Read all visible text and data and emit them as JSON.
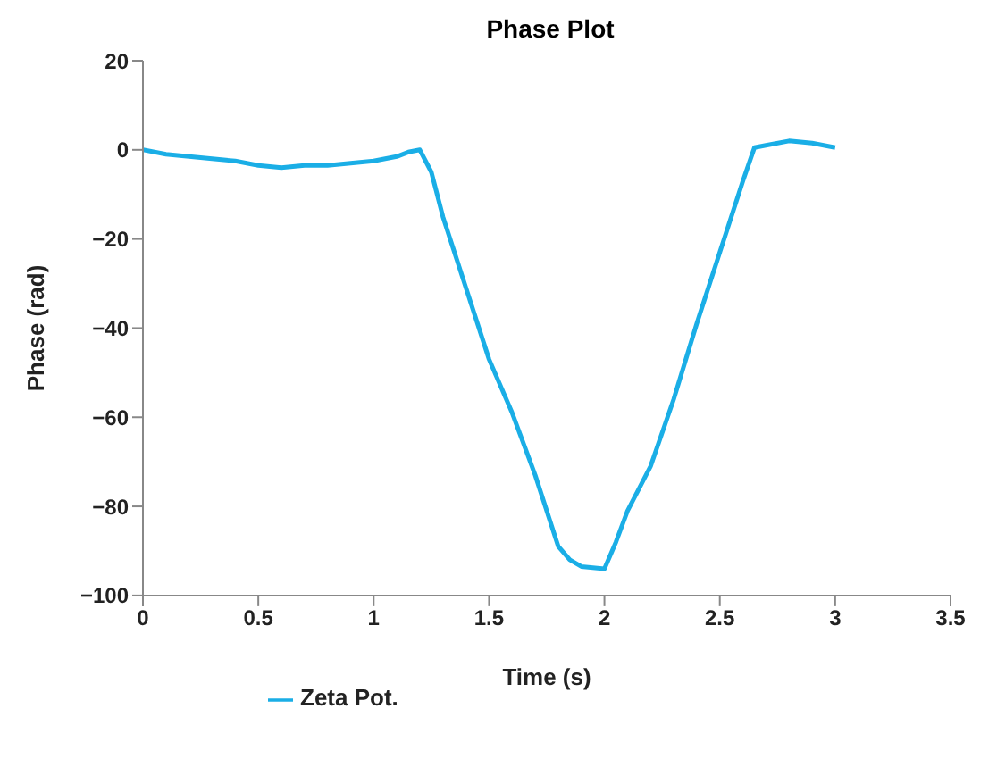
{
  "chart_data": {
    "type": "line",
    "title": "Phase Plot",
    "xlabel": "Time (s)",
    "ylabel": "Phase (rad)",
    "x": [
      0,
      0.1,
      0.2,
      0.3,
      0.4,
      0.5,
      0.6,
      0.7,
      0.8,
      0.9,
      1.0,
      1.1,
      1.15,
      1.2,
      1.25,
      1.3,
      1.4,
      1.5,
      1.6,
      1.7,
      1.8,
      1.85,
      1.9,
      2.0,
      2.05,
      2.1,
      2.2,
      2.3,
      2.4,
      2.5,
      2.6,
      2.65,
      2.7,
      2.8,
      2.9,
      3.0
    ],
    "series": [
      {
        "name": "Zeta Pot.",
        "color": "#1aaee6",
        "values": [
          0,
          -1,
          -1.5,
          -2,
          -2.5,
          -3.5,
          -4,
          -3.5,
          -3.5,
          -3,
          -2.5,
          -1.5,
          -0.5,
          0,
          -5,
          -15,
          -31,
          -47,
          -59,
          -73,
          -89,
          -92,
          -93.5,
          -94,
          -88,
          -81,
          -71,
          -56,
          -39,
          -23,
          -7,
          0.5,
          1,
          2,
          1.5,
          0.5
        ]
      }
    ],
    "xlim": [
      0,
      3.5
    ],
    "xticks": [
      0,
      0.5,
      1,
      1.5,
      2,
      2.5,
      3,
      3.5
    ],
    "ylim": [
      -100,
      20
    ],
    "yticks": [
      -100,
      -80,
      -60,
      -40,
      -20,
      0,
      20
    ],
    "grid": false,
    "legend": "bottom",
    "marker": "none",
    "line_style": "solid"
  }
}
